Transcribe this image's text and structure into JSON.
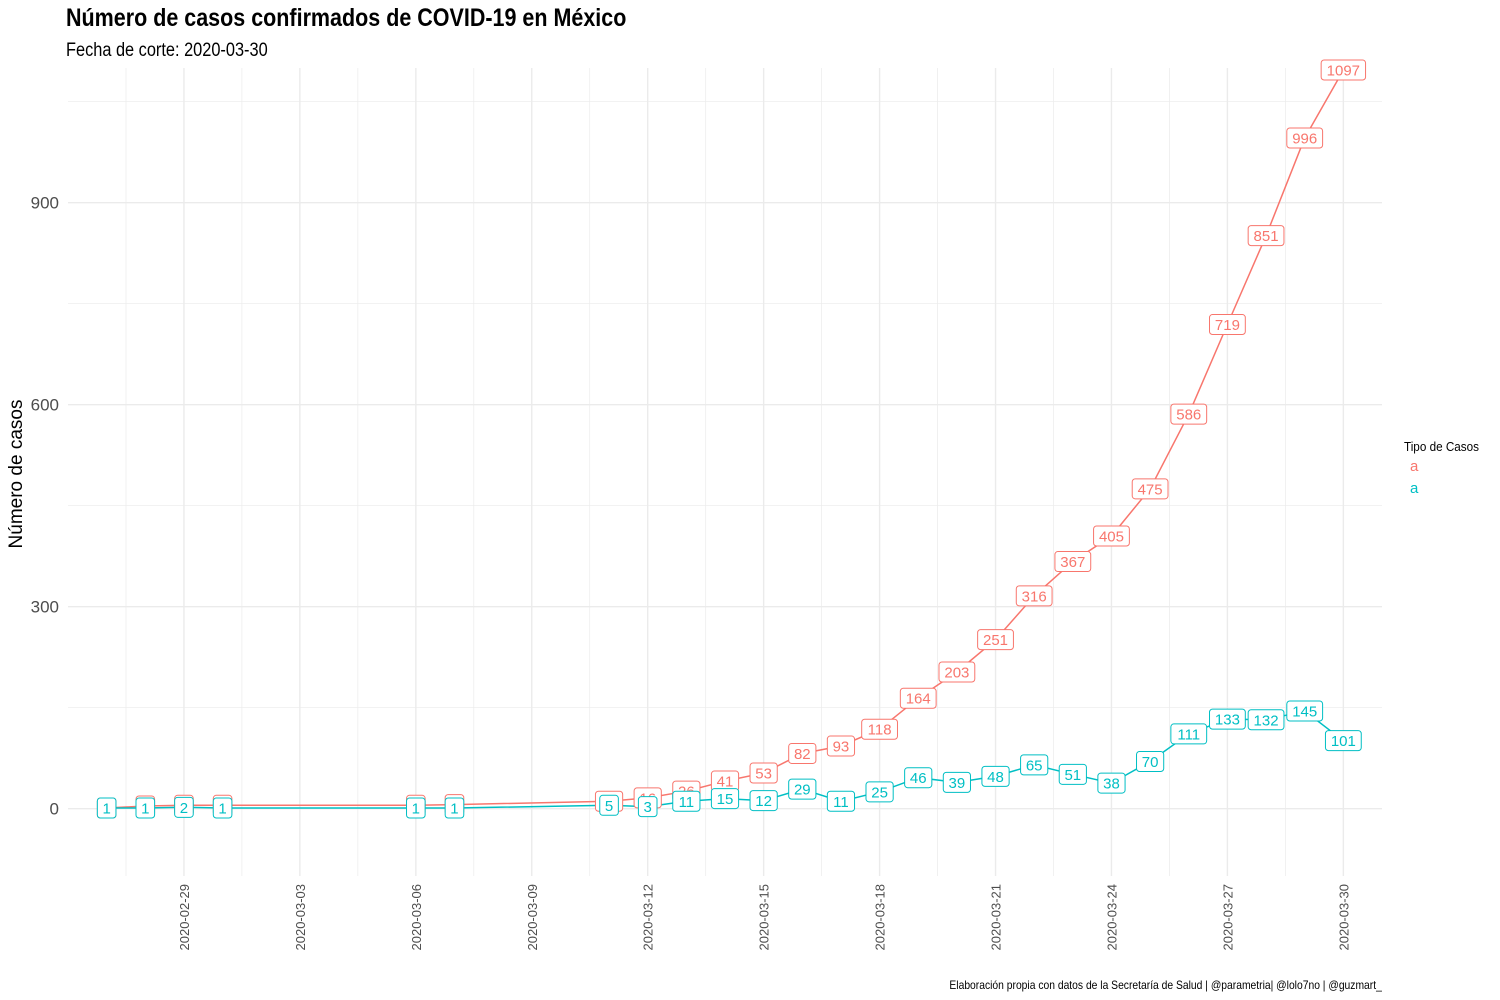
{
  "title": "Número de casos confirmados de COVID-19 en México",
  "subtitle": "Fecha de corte: 2020-03-30",
  "caption": "Elaboración propia con datos de la Secretaría de Salud | @parametria| @lolo7no | @guzmart_",
  "colors": {
    "series_1": "#F8766D",
    "series_2": "#00BFC4",
    "grid": "#EBEBEB",
    "axis_text": "#4D4D4D"
  },
  "chart_data": {
    "type": "line",
    "ylabel": "Número de casos",
    "xlabel": "",
    "ylim": [
      -100,
      1100
    ],
    "y_ticks": [
      0,
      300,
      600,
      900
    ],
    "x_range": [
      "2020-02-26",
      "2020-03-31"
    ],
    "x_ticks": [
      "2020-02-29",
      "2020-03-03",
      "2020-03-06",
      "2020-03-09",
      "2020-03-12",
      "2020-03-15",
      "2020-03-18",
      "2020-03-21",
      "2020-03-24",
      "2020-03-27",
      "2020-03-30"
    ],
    "grid": true,
    "legend_title": "Tipo de Casos",
    "legend_position": "right",
    "legend_labels": [
      "a",
      "a"
    ],
    "series": [
      {
        "color": "#F8766D",
        "points": [
          {
            "x": "2020-02-27",
            "y": 1
          },
          {
            "x": "2020-02-28",
            "y": 4
          },
          {
            "x": "2020-02-29",
            "y": 5
          },
          {
            "x": "2020-03-01",
            "y": 5
          },
          {
            "x": "2020-03-06",
            "y": 5
          },
          {
            "x": "2020-03-07",
            "y": 6
          },
          {
            "x": "2020-03-11",
            "y": 11
          },
          {
            "x": "2020-03-12",
            "y": 16
          },
          {
            "x": "2020-03-13",
            "y": 26
          },
          {
            "x": "2020-03-14",
            "y": 41
          },
          {
            "x": "2020-03-15",
            "y": 53
          },
          {
            "x": "2020-03-16",
            "y": 82
          },
          {
            "x": "2020-03-17",
            "y": 93
          },
          {
            "x": "2020-03-18",
            "y": 118
          },
          {
            "x": "2020-03-19",
            "y": 164
          },
          {
            "x": "2020-03-20",
            "y": 203
          },
          {
            "x": "2020-03-21",
            "y": 251
          },
          {
            "x": "2020-03-22",
            "y": 316
          },
          {
            "x": "2020-03-23",
            "y": 367
          },
          {
            "x": "2020-03-24",
            "y": 405
          },
          {
            "x": "2020-03-25",
            "y": 475
          },
          {
            "x": "2020-03-26",
            "y": 586
          },
          {
            "x": "2020-03-27",
            "y": 719
          },
          {
            "x": "2020-03-28",
            "y": 851
          },
          {
            "x": "2020-03-29",
            "y": 996
          },
          {
            "x": "2020-03-30",
            "y": 1097
          }
        ]
      },
      {
        "color": "#00BFC4",
        "points": [
          {
            "x": "2020-02-27",
            "y": 1
          },
          {
            "x": "2020-02-28",
            "y": 1
          },
          {
            "x": "2020-02-29",
            "y": 2
          },
          {
            "x": "2020-03-01",
            "y": 1
          },
          {
            "x": "2020-03-06",
            "y": 1
          },
          {
            "x": "2020-03-07",
            "y": 1
          },
          {
            "x": "2020-03-11",
            "y": 5
          },
          {
            "x": "2020-03-12",
            "y": 3
          },
          {
            "x": "2020-03-13",
            "y": 11
          },
          {
            "x": "2020-03-14",
            "y": 15
          },
          {
            "x": "2020-03-15",
            "y": 12
          },
          {
            "x": "2020-03-16",
            "y": 29
          },
          {
            "x": "2020-03-17",
            "y": 11
          },
          {
            "x": "2020-03-18",
            "y": 25
          },
          {
            "x": "2020-03-19",
            "y": 46
          },
          {
            "x": "2020-03-20",
            "y": 39
          },
          {
            "x": "2020-03-21",
            "y": 48
          },
          {
            "x": "2020-03-22",
            "y": 65
          },
          {
            "x": "2020-03-23",
            "y": 51
          },
          {
            "x": "2020-03-24",
            "y": 38
          },
          {
            "x": "2020-03-25",
            "y": 70
          },
          {
            "x": "2020-03-26",
            "y": 111
          },
          {
            "x": "2020-03-27",
            "y": 133
          },
          {
            "x": "2020-03-28",
            "y": 132
          },
          {
            "x": "2020-03-29",
            "y": 145
          },
          {
            "x": "2020-03-30",
            "y": 101
          }
        ]
      }
    ]
  }
}
